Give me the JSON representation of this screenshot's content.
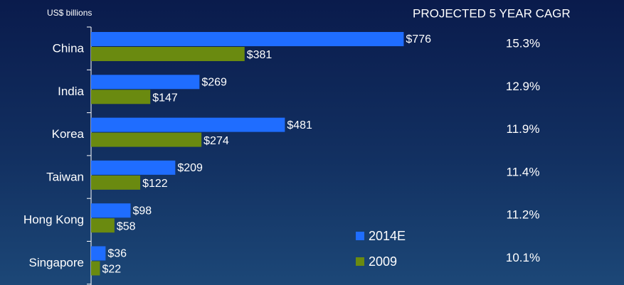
{
  "chart_data": {
    "type": "bar",
    "orientation": "horizontal",
    "axis_label": "US$ billions",
    "categories": [
      "China",
      "India",
      "Korea",
      "Taiwan",
      "Hong Kong",
      "Singapore"
    ],
    "series": [
      {
        "name": "2014E",
        "color": "#1f6dff",
        "values": [
          776,
          269,
          481,
          209,
          98,
          36
        ],
        "value_labels": [
          "$776",
          "$269",
          "$481",
          "$209",
          "$98",
          "$36"
        ]
      },
      {
        "name": "2009",
        "color": "#6a8a10",
        "values": [
          381,
          147,
          274,
          122,
          58,
          22
        ],
        "value_labels": [
          "$381",
          "$147",
          "$274",
          "$122",
          "$58",
          "$22"
        ]
      }
    ],
    "xlim": [
      0,
      800
    ],
    "cagr": {
      "title": "PROJECTED 5 YEAR CAGR",
      "labels": [
        "15.3%",
        "12.9%",
        "11.9%",
        "11.4%",
        "11.2%",
        "10.1%"
      ]
    }
  }
}
